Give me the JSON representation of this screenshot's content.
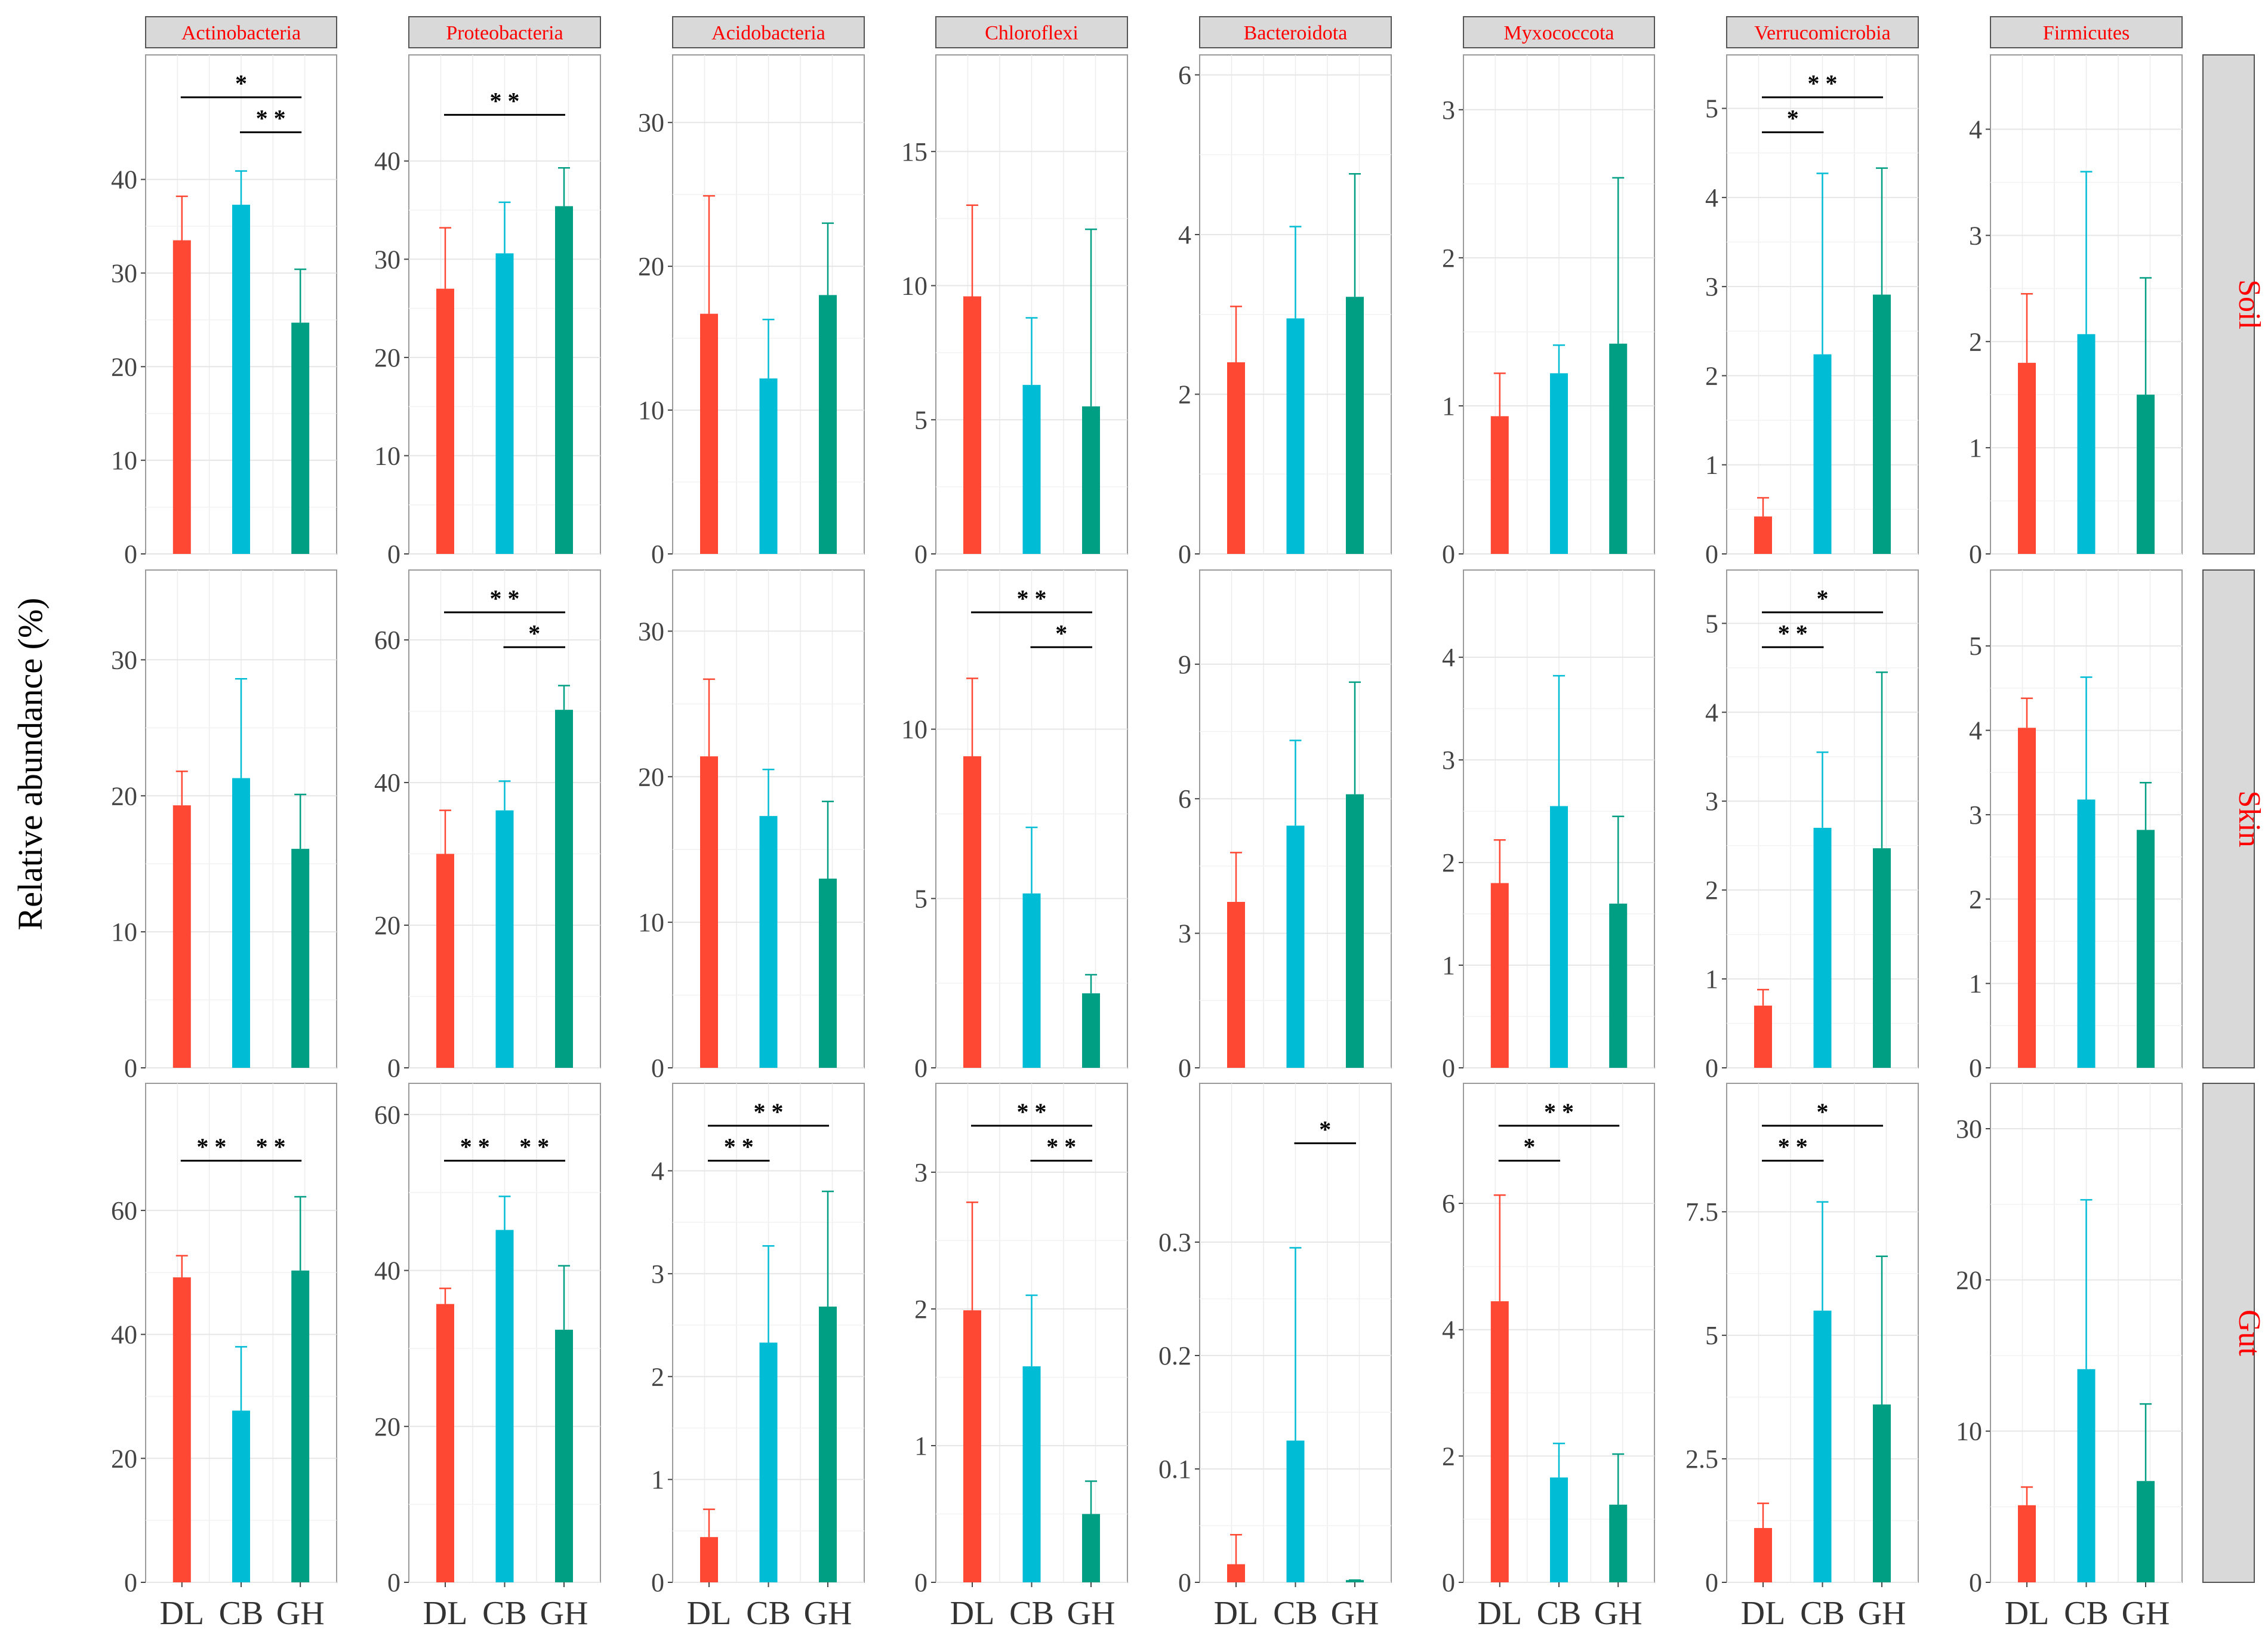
{
  "chart_data": {
    "type": "bar",
    "y_axis_label": "Relative abundance (%)",
    "categories": [
      "DL",
      "CB",
      "GH"
    ],
    "colors": {
      "DL": "#FF4833",
      "CB": "#00BCD4",
      "GH": "#009E83"
    },
    "phyla": [
      "Actinobacteria",
      "Proteobacteria",
      "Acidobacteria",
      "Chloroflexi",
      "Bacteroidota",
      "Myxococcota",
      "Verrucomicrobia",
      "Firmicutes"
    ],
    "tissues": [
      "Soil",
      "Skin",
      "Gut"
    ],
    "panels": [
      [
        {
          "ylim": [
            0,
            53.3
          ],
          "ticks": [
            0,
            10,
            20,
            30,
            40
          ],
          "tick_labels": [
            "0",
            "10",
            "20",
            "30",
            "40"
          ],
          "values": [
            33.5,
            37.3,
            24.7
          ],
          "errors": [
            38.2,
            40.9,
            30.4
          ],
          "sig": [
            {
              "from": 0,
              "to": 2,
              "label": "*"
            },
            {
              "from": 1,
              "to": 2,
              "label": "* *"
            }
          ]
        },
        {
          "ylim": [
            0,
            50.8
          ],
          "ticks": [
            0,
            10,
            20,
            30,
            40
          ],
          "tick_labels": [
            "0",
            "10",
            "20",
            "30",
            "40"
          ],
          "values": [
            27.0,
            30.6,
            35.4
          ],
          "errors": [
            33.2,
            35.8,
            39.3
          ],
          "sig": [
            {
              "from": 0,
              "to": 2,
              "label": "* *"
            }
          ]
        },
        {
          "ylim": [
            0,
            34.7
          ],
          "ticks": [
            0,
            10,
            20,
            30
          ],
          "tick_labels": [
            "0",
            "10",
            "20",
            "30"
          ],
          "values": [
            16.7,
            12.2,
            18.0
          ],
          "errors": [
            24.9,
            16.3,
            23.0
          ],
          "sig": []
        },
        {
          "ylim": [
            0,
            18.6
          ],
          "ticks": [
            0,
            5,
            10,
            15
          ],
          "tick_labels": [
            "0",
            "5",
            "10",
            "15"
          ],
          "values": [
            9.6,
            6.3,
            5.5
          ],
          "errors": [
            13.0,
            8.8,
            12.1
          ],
          "sig": []
        },
        {
          "ylim": [
            0,
            6.25
          ],
          "ticks": [
            0,
            2,
            4,
            6
          ],
          "tick_labels": [
            "0",
            "2",
            "4",
            "6"
          ],
          "values": [
            2.4,
            2.95,
            3.22
          ],
          "errors": [
            3.1,
            4.1,
            4.76
          ],
          "sig": []
        },
        {
          "ylim": [
            0,
            3.37
          ],
          "ticks": [
            0,
            1,
            2,
            3
          ],
          "tick_labels": [
            "0",
            "1",
            "2",
            "3"
          ],
          "values": [
            0.93,
            1.22,
            1.42
          ],
          "errors": [
            1.22,
            1.41,
            2.54
          ],
          "sig": []
        },
        {
          "ylim": [
            0,
            5.6
          ],
          "ticks": [
            0,
            1,
            2,
            3,
            4,
            5
          ],
          "tick_labels": [
            "0",
            "1",
            "2",
            "3",
            "4",
            "5"
          ],
          "values": [
            0.42,
            2.24,
            2.91
          ],
          "errors": [
            0.63,
            4.27,
            4.33
          ],
          "sig": [
            {
              "from": 0,
              "to": 2,
              "label": "* *"
            },
            {
              "from": 0,
              "to": 1,
              "label": "*"
            }
          ]
        },
        {
          "ylim": [
            0,
            4.7
          ],
          "ticks": [
            0,
            1,
            2,
            3,
            4
          ],
          "tick_labels": [
            "0",
            "1",
            "2",
            "3",
            "4"
          ],
          "values": [
            1.8,
            2.07,
            1.5
          ],
          "errors": [
            2.45,
            3.6,
            2.6
          ],
          "sig": []
        }
      ],
      [
        {
          "ylim": [
            0,
            36.6
          ],
          "ticks": [
            0,
            10,
            20,
            30
          ],
          "tick_labels": [
            "0",
            "10",
            "20",
            "30"
          ],
          "values": [
            19.3,
            21.3,
            16.1
          ],
          "errors": [
            21.8,
            28.6,
            20.1
          ],
          "sig": []
        },
        {
          "ylim": [
            0,
            69.8
          ],
          "ticks": [
            0,
            20,
            40,
            60
          ],
          "tick_labels": [
            "0",
            "20",
            "40",
            "60"
          ],
          "values": [
            30.0,
            36.1,
            50.2
          ],
          "errors": [
            36.1,
            40.2,
            53.6
          ],
          "sig": [
            {
              "from": 0,
              "to": 2,
              "label": "* *"
            },
            {
              "from": 1,
              "to": 2,
              "label": "*"
            }
          ]
        },
        {
          "ylim": [
            0,
            34.2
          ],
          "ticks": [
            0,
            10,
            20,
            30
          ],
          "tick_labels": [
            "0",
            "10",
            "20",
            "30"
          ],
          "values": [
            21.4,
            17.3,
            13.0
          ],
          "errors": [
            26.7,
            20.5,
            18.3
          ],
          "sig": []
        },
        {
          "ylim": [
            0,
            14.7
          ],
          "ticks": [
            0,
            5,
            10
          ],
          "tick_labels": [
            "0",
            "5",
            "10"
          ],
          "values": [
            9.2,
            5.15,
            2.2
          ],
          "errors": [
            11.5,
            7.1,
            2.75
          ],
          "sig": [
            {
              "from": 0,
              "to": 2,
              "label": "* *"
            },
            {
              "from": 1,
              "to": 2,
              "label": "*"
            }
          ]
        },
        {
          "ylim": [
            0,
            11.1
          ],
          "ticks": [
            0,
            3,
            6,
            9
          ],
          "tick_labels": [
            "0",
            "3",
            "6",
            "9"
          ],
          "values": [
            3.7,
            5.4,
            6.1
          ],
          "errors": [
            4.8,
            7.3,
            8.6
          ],
          "sig": []
        },
        {
          "ylim": [
            0,
            4.85
          ],
          "ticks": [
            0,
            1,
            2,
            3,
            4
          ],
          "tick_labels": [
            "0",
            "1",
            "2",
            "3",
            "4"
          ],
          "values": [
            1.8,
            2.55,
            1.6
          ],
          "errors": [
            2.22,
            3.82,
            2.45
          ],
          "sig": []
        },
        {
          "ylim": [
            0,
            5.6
          ],
          "ticks": [
            0,
            1,
            2,
            3,
            4,
            5
          ],
          "tick_labels": [
            "0",
            "1",
            "2",
            "3",
            "4",
            "5"
          ],
          "values": [
            0.7,
            2.7,
            2.47
          ],
          "errors": [
            0.88,
            3.55,
            4.45
          ],
          "sig": [
            {
              "from": 0,
              "to": 2,
              "label": "*"
            },
            {
              "from": 0,
              "to": 1,
              "label": "* *"
            }
          ]
        },
        {
          "ylim": [
            0,
            5.9
          ],
          "ticks": [
            0,
            1,
            2,
            3,
            4,
            5
          ],
          "tick_labels": [
            "0",
            "1",
            "2",
            "3",
            "4",
            "5"
          ],
          "values": [
            4.03,
            3.18,
            2.82
          ],
          "errors": [
            4.38,
            4.63,
            3.38
          ],
          "sig": []
        }
      ],
      [
        {
          "ylim": [
            0,
            80.5
          ],
          "ticks": [
            0,
            20,
            40,
            60
          ],
          "tick_labels": [
            "0",
            "20",
            "40",
            "60"
          ],
          "values": [
            49.2,
            27.7,
            50.3
          ],
          "errors": [
            52.7,
            38.0,
            62.2
          ],
          "sig": [
            {
              "from": 0,
              "to": 1,
              "label": "* *"
            },
            {
              "from": 1,
              "to": 2,
              "label": "* *"
            }
          ]
        },
        {
          "ylim": [
            0,
            64.0
          ],
          "ticks": [
            0,
            20,
            40,
            60
          ],
          "tick_labels": [
            "0",
            "20",
            "40",
            "60"
          ],
          "values": [
            35.7,
            45.2,
            32.4
          ],
          "errors": [
            37.7,
            49.5,
            40.6
          ],
          "sig": [
            {
              "from": 1,
              "to": 2,
              "label": "* *"
            },
            {
              "from": 0,
              "to": 1,
              "label": "* *"
            }
          ]
        },
        {
          "ylim": [
            0,
            4.85
          ],
          "ticks": [
            0,
            1,
            2,
            3,
            4
          ],
          "tick_labels": [
            "0",
            "1",
            "2",
            "3",
            "4"
          ],
          "values": [
            0.44,
            2.33,
            2.68
          ],
          "errors": [
            0.71,
            3.27,
            3.8
          ],
          "sig": [
            {
              "from": 0,
              "to": 2,
              "label": "* *"
            },
            {
              "from": 0,
              "to": 1,
              "label": "* *"
            }
          ]
        },
        {
          "ylim": [
            0,
            3.65
          ],
          "ticks": [
            0,
            1,
            2,
            3
          ],
          "tick_labels": [
            "0",
            "1",
            "2",
            "3"
          ],
          "values": [
            1.99,
            1.58,
            0.5
          ],
          "errors": [
            2.78,
            2.1,
            0.74
          ],
          "sig": [
            {
              "from": 0,
              "to": 2,
              "label": "* *"
            },
            {
              "from": 1,
              "to": 2,
              "label": "* *"
            }
          ]
        },
        {
          "ylim": [
            0,
            0.44
          ],
          "ticks": [
            0,
            0.1,
            0.2,
            0.3
          ],
          "tick_labels": [
            "0",
            "0.1",
            "0.2",
            "0.3"
          ],
          "values": [
            0.016,
            0.125,
            0.002
          ],
          "errors": [
            0.042,
            0.295,
            0.002
          ],
          "sig": [
            {
              "from": 1,
              "to": 2,
              "label": "*"
            }
          ]
        },
        {
          "ylim": [
            0,
            7.9
          ],
          "ticks": [
            0,
            2,
            4,
            6
          ],
          "tick_labels": [
            "0",
            "2",
            "4",
            "6"
          ],
          "values": [
            4.45,
            1.66,
            1.23
          ],
          "errors": [
            6.13,
            2.2,
            2.03
          ],
          "sig": [
            {
              "from": 0,
              "to": 2,
              "label": "* *"
            },
            {
              "from": 0,
              "to": 1,
              "label": "*"
            }
          ]
        },
        {
          "ylim": [
            0,
            10.1
          ],
          "ticks": [
            0,
            2.5,
            5,
            7.5
          ],
          "tick_labels": [
            "0",
            "2.5",
            "5",
            "7.5"
          ],
          "values": [
            1.1,
            5.5,
            3.6
          ],
          "errors": [
            1.6,
            7.7,
            6.6
          ],
          "sig": [
            {
              "from": 0,
              "to": 2,
              "label": "*"
            },
            {
              "from": 0,
              "to": 1,
              "label": "* *"
            }
          ]
        },
        {
          "ylim": [
            0,
            33.0
          ],
          "ticks": [
            0,
            10,
            20,
            30
          ],
          "tick_labels": [
            "0",
            "10",
            "20",
            "30"
          ],
          "values": [
            5.1,
            14.1,
            6.7
          ],
          "errors": [
            6.3,
            25.3,
            11.8
          ],
          "sig": []
        }
      ]
    ]
  }
}
